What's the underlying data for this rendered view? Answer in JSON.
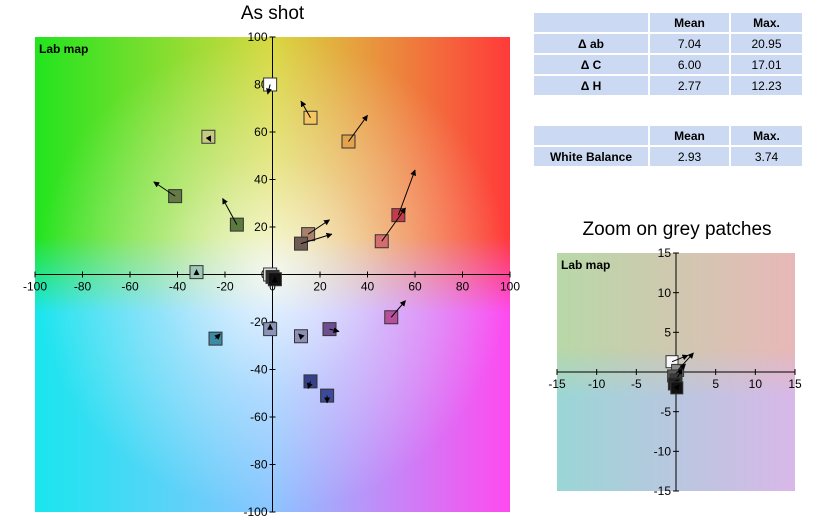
{
  "main_title": "As shot",
  "zoom_title": "Zoom on grey patches",
  "map_label": "Lab map",
  "table1": {
    "columns": [
      "",
      "Mean",
      "Max."
    ],
    "rows": [
      {
        "label": "Δ ab",
        "mean": "7.04",
        "max": "20.95"
      },
      {
        "label": "Δ C",
        "mean": "6.00",
        "max": "17.01"
      },
      {
        "label": "Δ H",
        "mean": "2.77",
        "max": "12.23"
      }
    ]
  },
  "table2": {
    "columns": [
      "",
      "Mean",
      "Max."
    ],
    "rows": [
      {
        "label": "White Balance",
        "mean": "2.93",
        "max": "3.74"
      }
    ]
  },
  "colors": {
    "table_bg": "#ccd9f2",
    "arrow": "#000000",
    "marker_stroke": "#333333"
  },
  "chart_data": [
    {
      "type": "scatter",
      "title": "As shot",
      "label": "Lab map",
      "xlim": [
        -100,
        100
      ],
      "ylim": [
        -100,
        100
      ],
      "xticks": [
        -100,
        -80,
        -60,
        -40,
        -20,
        0,
        20,
        40,
        60,
        80,
        100
      ],
      "yticks": [
        -100,
        -80,
        -60,
        -40,
        -20,
        0,
        20,
        40,
        60,
        80,
        100
      ],
      "tick_labels_x": [
        "-100",
        "-80",
        "-60",
        "-40",
        "-20",
        "0",
        "20",
        "40",
        "60",
        "80",
        "100"
      ],
      "tick_labels_y": [
        "-100",
        "-80",
        "-60",
        "-40",
        "-20",
        "0",
        "20",
        "40",
        "60",
        "80",
        "100"
      ],
      "patches": [
        {
          "a": -1,
          "b": 80,
          "a2": -2,
          "b2": 76,
          "color": "#fdfdfd"
        },
        {
          "a": -27,
          "b": 58,
          "a2": -26,
          "b2": 56,
          "color": "#c7c983"
        },
        {
          "a": 16,
          "b": 66,
          "a2": 12,
          "b2": 73,
          "color": "#f5c661"
        },
        {
          "a": 32,
          "b": 56,
          "a2": 40,
          "b2": 67,
          "color": "#e2a34b"
        },
        {
          "a": -41,
          "b": 33,
          "a2": -50,
          "b2": 39,
          "color": "#667a48"
        },
        {
          "a": -15,
          "b": 21,
          "a2": -21,
          "b2": 32,
          "color": "#5d7a3e"
        },
        {
          "a": 53,
          "b": 25,
          "a2": 60,
          "b2": 44,
          "color": "#c53a48"
        },
        {
          "a": 46,
          "b": 14,
          "a2": 56,
          "b2": 28,
          "color": "#d66c6c"
        },
        {
          "a": 15,
          "b": 17,
          "a2": 24,
          "b2": 23,
          "color": "#a8806c"
        },
        {
          "a": 12,
          "b": 13,
          "a2": 25,
          "b2": 17,
          "color": "#6f5b52"
        },
        {
          "a": -32,
          "b": 1,
          "a2": -32,
          "b2": 2,
          "color": "#9dc7b6"
        },
        {
          "a": -1,
          "b": 0,
          "a2": 0,
          "b2": 1,
          "color": "#f4f4f4"
        },
        {
          "a": 0,
          "b": -1,
          "a2": 1,
          "b2": 0,
          "color": "#303030"
        },
        {
          "a": 1,
          "b": -2,
          "a2": 1,
          "b2": -1,
          "color": "#111111"
        },
        {
          "a": -1,
          "b": -23,
          "a2": -1,
          "b2": -21,
          "color": "#8a93b8"
        },
        {
          "a": -24,
          "b": -27,
          "a2": -22,
          "b2": -25,
          "color": "#3d8aa4"
        },
        {
          "a": 12,
          "b": -26,
          "a2": 11,
          "b2": -25,
          "color": "#8e8fb6"
        },
        {
          "a": 24,
          "b": -23,
          "a2": 28,
          "b2": -24,
          "color": "#6c4f90"
        },
        {
          "a": 50,
          "b": -18,
          "a2": 56,
          "b2": -11,
          "color": "#b84f9c"
        },
        {
          "a": 16,
          "b": -45,
          "a2": 15,
          "b2": -48,
          "color": "#36418a"
        },
        {
          "a": 23,
          "b": -51,
          "a2": 23,
          "b2": -54,
          "color": "#3c4a99"
        }
      ]
    },
    {
      "type": "scatter",
      "title": "Zoom on grey patches",
      "label": "Lab map",
      "xlim": [
        -15,
        15
      ],
      "ylim": [
        -15,
        15
      ],
      "xticks": [
        -15,
        -10,
        -5,
        0,
        5,
        10,
        15
      ],
      "yticks": [
        -15,
        -10,
        -5,
        0,
        5,
        10,
        15
      ],
      "tick_labels_x": [
        "-15",
        "-10",
        "-5",
        "",
        "5",
        "10",
        "15"
      ],
      "tick_labels_y": [
        "-15",
        "-10",
        "-5",
        "",
        "5",
        "10",
        "15"
      ],
      "patches": [
        {
          "a": -0.5,
          "b": 1.3,
          "a2": 1.5,
          "b2": 2.1,
          "color": "#f8f8f8"
        },
        {
          "a": 0.2,
          "b": 0.2,
          "a2": 2.2,
          "b2": 2.4,
          "color": "#8a8a8a"
        },
        {
          "a": -0.3,
          "b": -0.5,
          "a2": 1.2,
          "b2": 1.0,
          "color": "#5a5a5a"
        },
        {
          "a": 0.0,
          "b": -1.0,
          "a2": 0.8,
          "b2": 0.4,
          "color": "#3a3a3a"
        },
        {
          "a": -0.2,
          "b": -1.5,
          "a2": 0.3,
          "b2": -1.0,
          "color": "#222222"
        },
        {
          "a": 0.1,
          "b": -2.0,
          "a2": 0.4,
          "b2": -1.6,
          "color": "#111111"
        }
      ]
    }
  ]
}
